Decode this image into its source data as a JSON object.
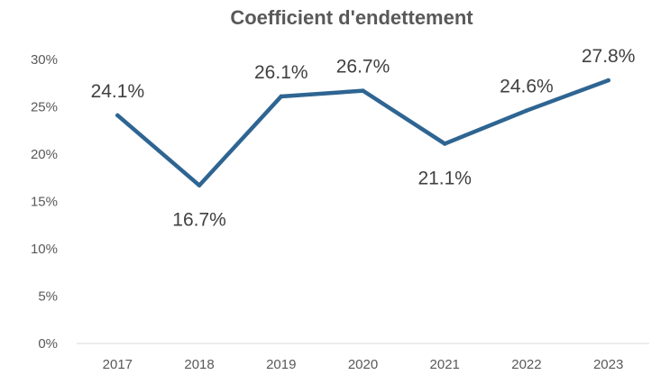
{
  "chart_data": {
    "type": "line",
    "title": "Coefficient d'endettement",
    "xlabel": "",
    "ylabel": "",
    "categories": [
      "2017",
      "2018",
      "2019",
      "2020",
      "2021",
      "2022",
      "2023"
    ],
    "series": [
      {
        "values": [
          24.1,
          16.7,
          26.1,
          26.7,
          21.1,
          24.6,
          27.8
        ],
        "data_labels": [
          "24.1%",
          "16.7%",
          "26.1%",
          "26.7%",
          "21.1%",
          "24.6%",
          "27.8%"
        ],
        "color": "#2E6592"
      }
    ],
    "ylim": [
      0,
      30
    ],
    "yticks": [
      0,
      5,
      10,
      15,
      20,
      25,
      30
    ],
    "ytick_labels": [
      "0%",
      "5%",
      "10%",
      "15%",
      "20%",
      "25%",
      "30%"
    ],
    "grid": false,
    "legend": "none"
  }
}
